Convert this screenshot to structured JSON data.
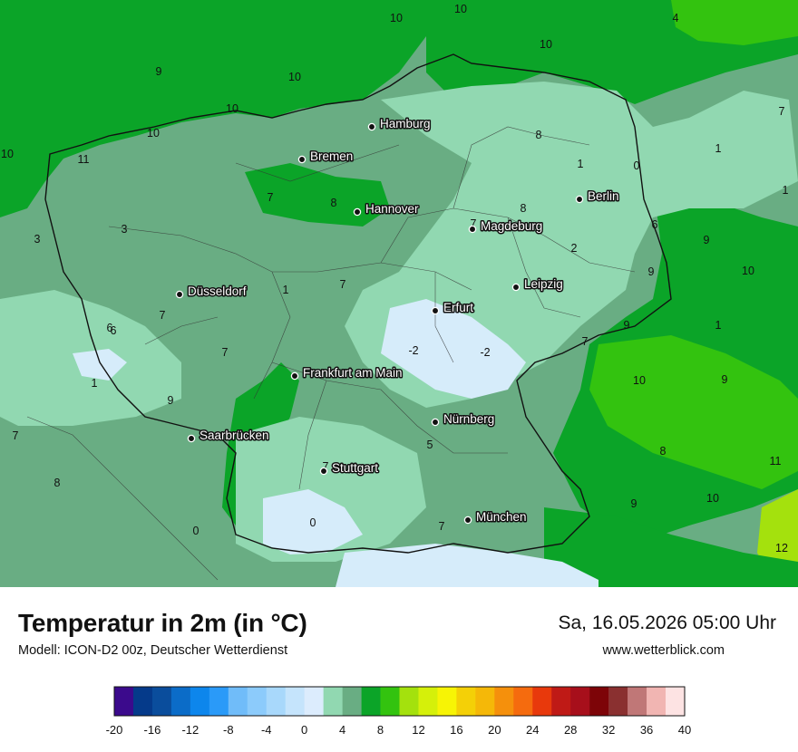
{
  "map": {
    "cities": [
      {
        "name": "Hamburg"
      },
      {
        "name": "Bremen"
      },
      {
        "name": "Hannover"
      },
      {
        "name": "Berlin"
      },
      {
        "name": "Magdeburg"
      },
      {
        "name": "Düsseldorf"
      },
      {
        "name": "Leipzig"
      },
      {
        "name": "Erfurt"
      },
      {
        "name": "Frankfurt am Main"
      },
      {
        "name": "Nürnberg"
      },
      {
        "name": "Saarbrücken"
      },
      {
        "name": "Stuttgart"
      },
      {
        "name": "München"
      }
    ],
    "isotherm_labels": [
      "10",
      "10",
      "10",
      "4",
      "9",
      "10",
      "10",
      "10",
      "10",
      "11",
      "8",
      "7",
      "1",
      "0",
      "1",
      "1",
      "7",
      "8",
      "8",
      "7",
      "6",
      "9",
      "2",
      "3",
      "3",
      "1",
      "7",
      "7",
      "6",
      "1",
      "7",
      "9",
      "10",
      "9",
      "1",
      "9",
      "-2",
      "-2",
      "10",
      "9",
      "7",
      "5",
      "8",
      "11",
      "7",
      "8",
      "0",
      "0",
      "9",
      "10",
      "12",
      "7",
      "7",
      "6"
    ],
    "colors": {
      "sea_green": "#0ba428",
      "bright_green": "#33c30f",
      "mid_green": "#69ad83",
      "light_green": "#91d8b1",
      "pale_blue": "#d6ecfa"
    }
  },
  "footer": {
    "title": "Temperatur in 2m (in °C)",
    "model": "Modell: ICON-D2 00z, Deutscher Wetterdienst",
    "datetime": "Sa, 16.05.2026 05:00 Uhr",
    "site": "www.wetterblick.com"
  },
  "legend": {
    "ticks": [
      "-20",
      "-16",
      "-12",
      "-8",
      "-4",
      "0",
      "4",
      "8",
      "12",
      "16",
      "20",
      "24",
      "28",
      "32",
      "36",
      "40"
    ],
    "colors": [
      "#3b0a8c",
      "#053a8a",
      "#0a4d9c",
      "#0b6cc8",
      "#0d86ec",
      "#2a9af8",
      "#70bcf9",
      "#8ccbfb",
      "#a8d8fb",
      "#c5e4fc",
      "#dcecfd",
      "#91d8b1",
      "#69ad83",
      "#0ba428",
      "#33c30f",
      "#a4e10d",
      "#d5f00a",
      "#f7f405",
      "#f4d007",
      "#f5b808",
      "#f5900c",
      "#f56b0e",
      "#e8390c",
      "#bf1a16",
      "#a70f1b",
      "#7d0408",
      "#8a3030",
      "#c07777",
      "#f1b5b2",
      "#fde3e3"
    ]
  }
}
